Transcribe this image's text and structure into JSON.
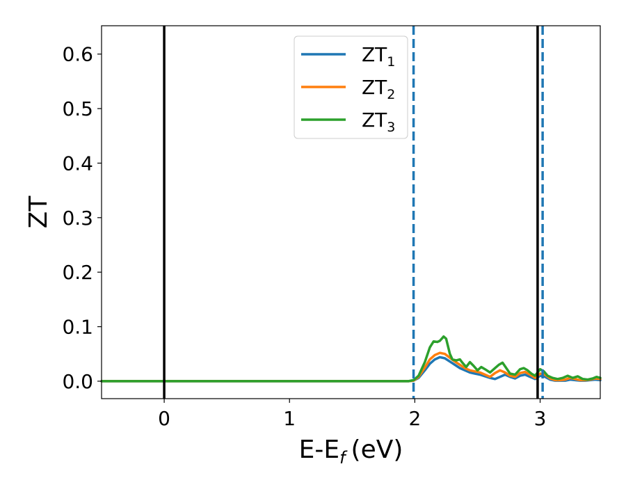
{
  "chart_data": {
    "type": "line",
    "xlabel": "E-E",
    "xlabel_sub": "f",
    "xlabel_unit": "(eV)",
    "ylabel": "ZT",
    "xlim": [
      -0.5,
      3.48
    ],
    "ylim": [
      -0.032,
      0.652
    ],
    "xticks": [
      0,
      1,
      2,
      3
    ],
    "xtick_labels": [
      "0",
      "1",
      "2",
      "3"
    ],
    "yticks": [
      0.0,
      0.1,
      0.2,
      0.3,
      0.4,
      0.5,
      0.6
    ],
    "ytick_labels": [
      "0.0",
      "0.1",
      "0.2",
      "0.3",
      "0.4",
      "0.5",
      "0.6"
    ],
    "grid": false,
    "legend_position": "top-center",
    "vlines": [
      {
        "x": 0.0,
        "style": "solid",
        "color": "#000000"
      },
      {
        "x": 2.98,
        "style": "solid",
        "color": "#000000"
      },
      {
        "x": 1.99,
        "style": "dashed",
        "color": "#1f77b4"
      },
      {
        "x": 3.02,
        "style": "dashed",
        "color": "#1f77b4"
      }
    ],
    "series": [
      {
        "name": "ZT",
        "name_sub": "1",
        "color": "#1f77b4",
        "points": [
          [
            -0.5,
            0
          ],
          [
            1.95,
            0
          ],
          [
            1.99,
            0.001
          ],
          [
            2.03,
            0.006
          ],
          [
            2.08,
            0.02
          ],
          [
            2.12,
            0.032
          ],
          [
            2.16,
            0.04
          ],
          [
            2.2,
            0.044
          ],
          [
            2.24,
            0.042
          ],
          [
            2.28,
            0.036
          ],
          [
            2.32,
            0.03
          ],
          [
            2.36,
            0.024
          ],
          [
            2.4,
            0.02
          ],
          [
            2.44,
            0.016
          ],
          [
            2.48,
            0.014
          ],
          [
            2.52,
            0.012
          ],
          [
            2.56,
            0.009
          ],
          [
            2.6,
            0.006
          ],
          [
            2.64,
            0.004
          ],
          [
            2.68,
            0.008
          ],
          [
            2.72,
            0.012
          ],
          [
            2.76,
            0.008
          ],
          [
            2.8,
            0.005
          ],
          [
            2.84,
            0.01
          ],
          [
            2.88,
            0.012
          ],
          [
            2.92,
            0.008
          ],
          [
            2.96,
            0.004
          ],
          [
            3.0,
            0.01
          ],
          [
            3.04,
            0.008
          ],
          [
            3.08,
            0.003
          ],
          [
            3.12,
            0.001
          ],
          [
            3.16,
            0.001
          ],
          [
            3.2,
            0.001
          ],
          [
            3.24,
            0.003
          ],
          [
            3.28,
            0.002
          ],
          [
            3.32,
            0.001
          ],
          [
            3.36,
            0.001
          ],
          [
            3.4,
            0.002
          ],
          [
            3.44,
            0.003
          ],
          [
            3.48,
            0.002
          ]
        ]
      },
      {
        "name": "ZT",
        "name_sub": "2",
        "color": "#ff7f0e",
        "points": [
          [
            -0.5,
            0
          ],
          [
            1.95,
            0
          ],
          [
            1.99,
            0.001
          ],
          [
            2.03,
            0.008
          ],
          [
            2.08,
            0.025
          ],
          [
            2.12,
            0.04
          ],
          [
            2.16,
            0.048
          ],
          [
            2.2,
            0.052
          ],
          [
            2.24,
            0.05
          ],
          [
            2.28,
            0.043
          ],
          [
            2.32,
            0.036
          ],
          [
            2.36,
            0.03
          ],
          [
            2.4,
            0.024
          ],
          [
            2.44,
            0.02
          ],
          [
            2.48,
            0.018
          ],
          [
            2.52,
            0.016
          ],
          [
            2.56,
            0.012
          ],
          [
            2.6,
            0.008
          ],
          [
            2.64,
            0.015
          ],
          [
            2.68,
            0.02
          ],
          [
            2.72,
            0.016
          ],
          [
            2.76,
            0.01
          ],
          [
            2.8,
            0.008
          ],
          [
            2.84,
            0.015
          ],
          [
            2.88,
            0.017
          ],
          [
            2.92,
            0.012
          ],
          [
            2.96,
            0.006
          ],
          [
            3.0,
            0.014
          ],
          [
            3.04,
            0.012
          ],
          [
            3.08,
            0.005
          ],
          [
            3.12,
            0.002
          ],
          [
            3.16,
            0.002
          ],
          [
            3.2,
            0.003
          ],
          [
            3.24,
            0.006
          ],
          [
            3.28,
            0.004
          ],
          [
            3.32,
            0.002
          ],
          [
            3.36,
            0.002
          ],
          [
            3.4,
            0.003
          ],
          [
            3.44,
            0.005
          ],
          [
            3.48,
            0.004
          ]
        ]
      },
      {
        "name": "ZT",
        "name_sub": "3",
        "color": "#2ca02c",
        "points": [
          [
            -0.5,
            0
          ],
          [
            1.95,
            0
          ],
          [
            1.99,
            0.002
          ],
          [
            2.03,
            0.01
          ],
          [
            2.08,
            0.035
          ],
          [
            2.12,
            0.062
          ],
          [
            2.15,
            0.073
          ],
          [
            2.18,
            0.072
          ],
          [
            2.2,
            0.074
          ],
          [
            2.23,
            0.082
          ],
          [
            2.25,
            0.078
          ],
          [
            2.28,
            0.05
          ],
          [
            2.3,
            0.04
          ],
          [
            2.33,
            0.038
          ],
          [
            2.36,
            0.04
          ],
          [
            2.38,
            0.034
          ],
          [
            2.41,
            0.026
          ],
          [
            2.44,
            0.035
          ],
          [
            2.47,
            0.028
          ],
          [
            2.5,
            0.02
          ],
          [
            2.53,
            0.026
          ],
          [
            2.56,
            0.022
          ],
          [
            2.6,
            0.016
          ],
          [
            2.64,
            0.024
          ],
          [
            2.67,
            0.03
          ],
          [
            2.7,
            0.034
          ],
          [
            2.73,
            0.024
          ],
          [
            2.76,
            0.014
          ],
          [
            2.8,
            0.012
          ],
          [
            2.84,
            0.022
          ],
          [
            2.87,
            0.024
          ],
          [
            2.9,
            0.02
          ],
          [
            2.93,
            0.014
          ],
          [
            2.96,
            0.01
          ],
          [
            3.0,
            0.022
          ],
          [
            3.03,
            0.018
          ],
          [
            3.06,
            0.01
          ],
          [
            3.1,
            0.006
          ],
          [
            3.14,
            0.004
          ],
          [
            3.18,
            0.006
          ],
          [
            3.22,
            0.01
          ],
          [
            3.26,
            0.006
          ],
          [
            3.3,
            0.009
          ],
          [
            3.34,
            0.004
          ],
          [
            3.38,
            0.003
          ],
          [
            3.42,
            0.005
          ],
          [
            3.45,
            0.008
          ],
          [
            3.48,
            0.006
          ]
        ]
      }
    ]
  }
}
